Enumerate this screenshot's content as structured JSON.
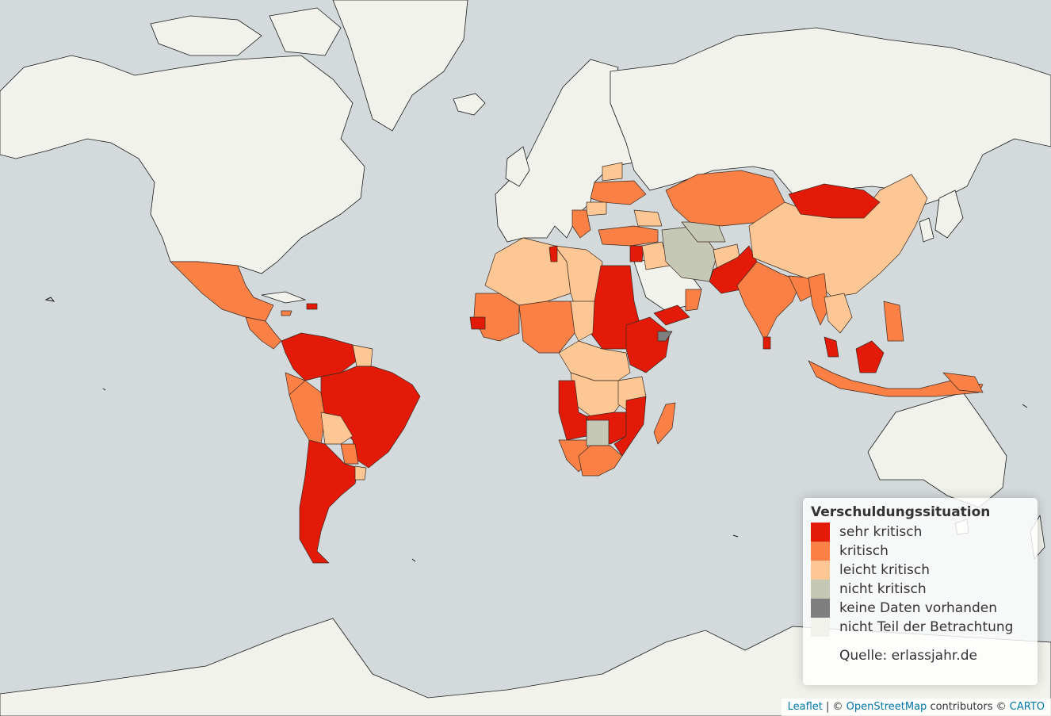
{
  "legend": {
    "title": "Verschuldungssituation",
    "items": [
      {
        "label": "sehr kritisch",
        "color": "#e41a09"
      },
      {
        "label": "kritisch",
        "color": "#fa8045"
      },
      {
        "label": "leicht kritisch",
        "color": "#fcc794"
      },
      {
        "label": "nicht kritisch",
        "color": "#c6c8b6"
      },
      {
        "label": "keine Daten vorhanden",
        "color": "#7f7f7f"
      },
      {
        "label": "nicht Teil der Betrachtung",
        "color": "#f2f2ec"
      }
    ],
    "source": "Quelle: erlassjahr.de"
  },
  "attribution": {
    "leaflet": "Leaflet",
    "sep1": " | © ",
    "osm": "OpenStreetMap",
    "contributors": " contributors © ",
    "carto": "CARTO"
  },
  "colors": {
    "ocean": "#d4dadc",
    "not_considered": "#f2f2ec"
  }
}
